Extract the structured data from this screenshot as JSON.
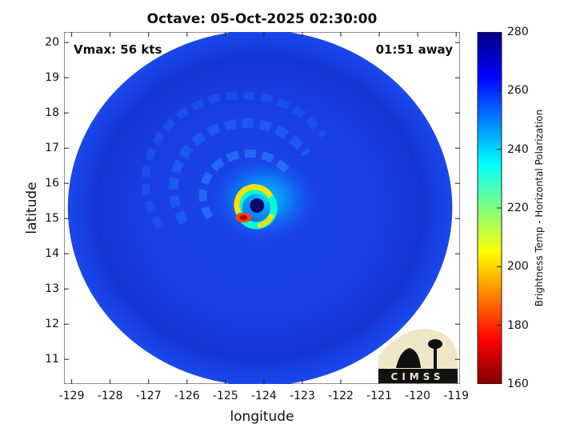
{
  "title": "Octave: 05-Oct-2025 02:30:00",
  "annotations": {
    "vmax": "Vmax: 56 kts",
    "away": "01:51 away"
  },
  "logo_text": "CIMSS",
  "axes": {
    "xlabel": "longitude",
    "ylabel": "latitude",
    "xlim": [
      -129.2,
      -118.9
    ],
    "ylim": [
      10.3,
      20.3
    ],
    "xticks": [
      -129,
      -128,
      -127,
      -126,
      -125,
      -124,
      -123,
      -122,
      -121,
      -120,
      -119
    ],
    "yticks": [
      11,
      12,
      13,
      14,
      15,
      16,
      17,
      18,
      19,
      20
    ]
  },
  "colorbar": {
    "label": "Brightness Temp - Horizontal Polarization",
    "range": [
      160,
      280
    ],
    "ticks": [
      160,
      180,
      200,
      220,
      240,
      260,
      280
    ],
    "colors": [
      "#7f0000",
      "#ff0000",
      "#ff8000",
      "#ffff00",
      "#80ff80",
      "#00ffff",
      "#0080ff",
      "#0000ff",
      "#000080"
    ]
  },
  "storm": {
    "center_lon": -124.2,
    "center_lat": 15.3,
    "swath_center_lon": -124.1,
    "swath_center_lat": 15.3,
    "swath_radius_lon": 5.0,
    "swath_radius_lat": 5.05
  }
}
